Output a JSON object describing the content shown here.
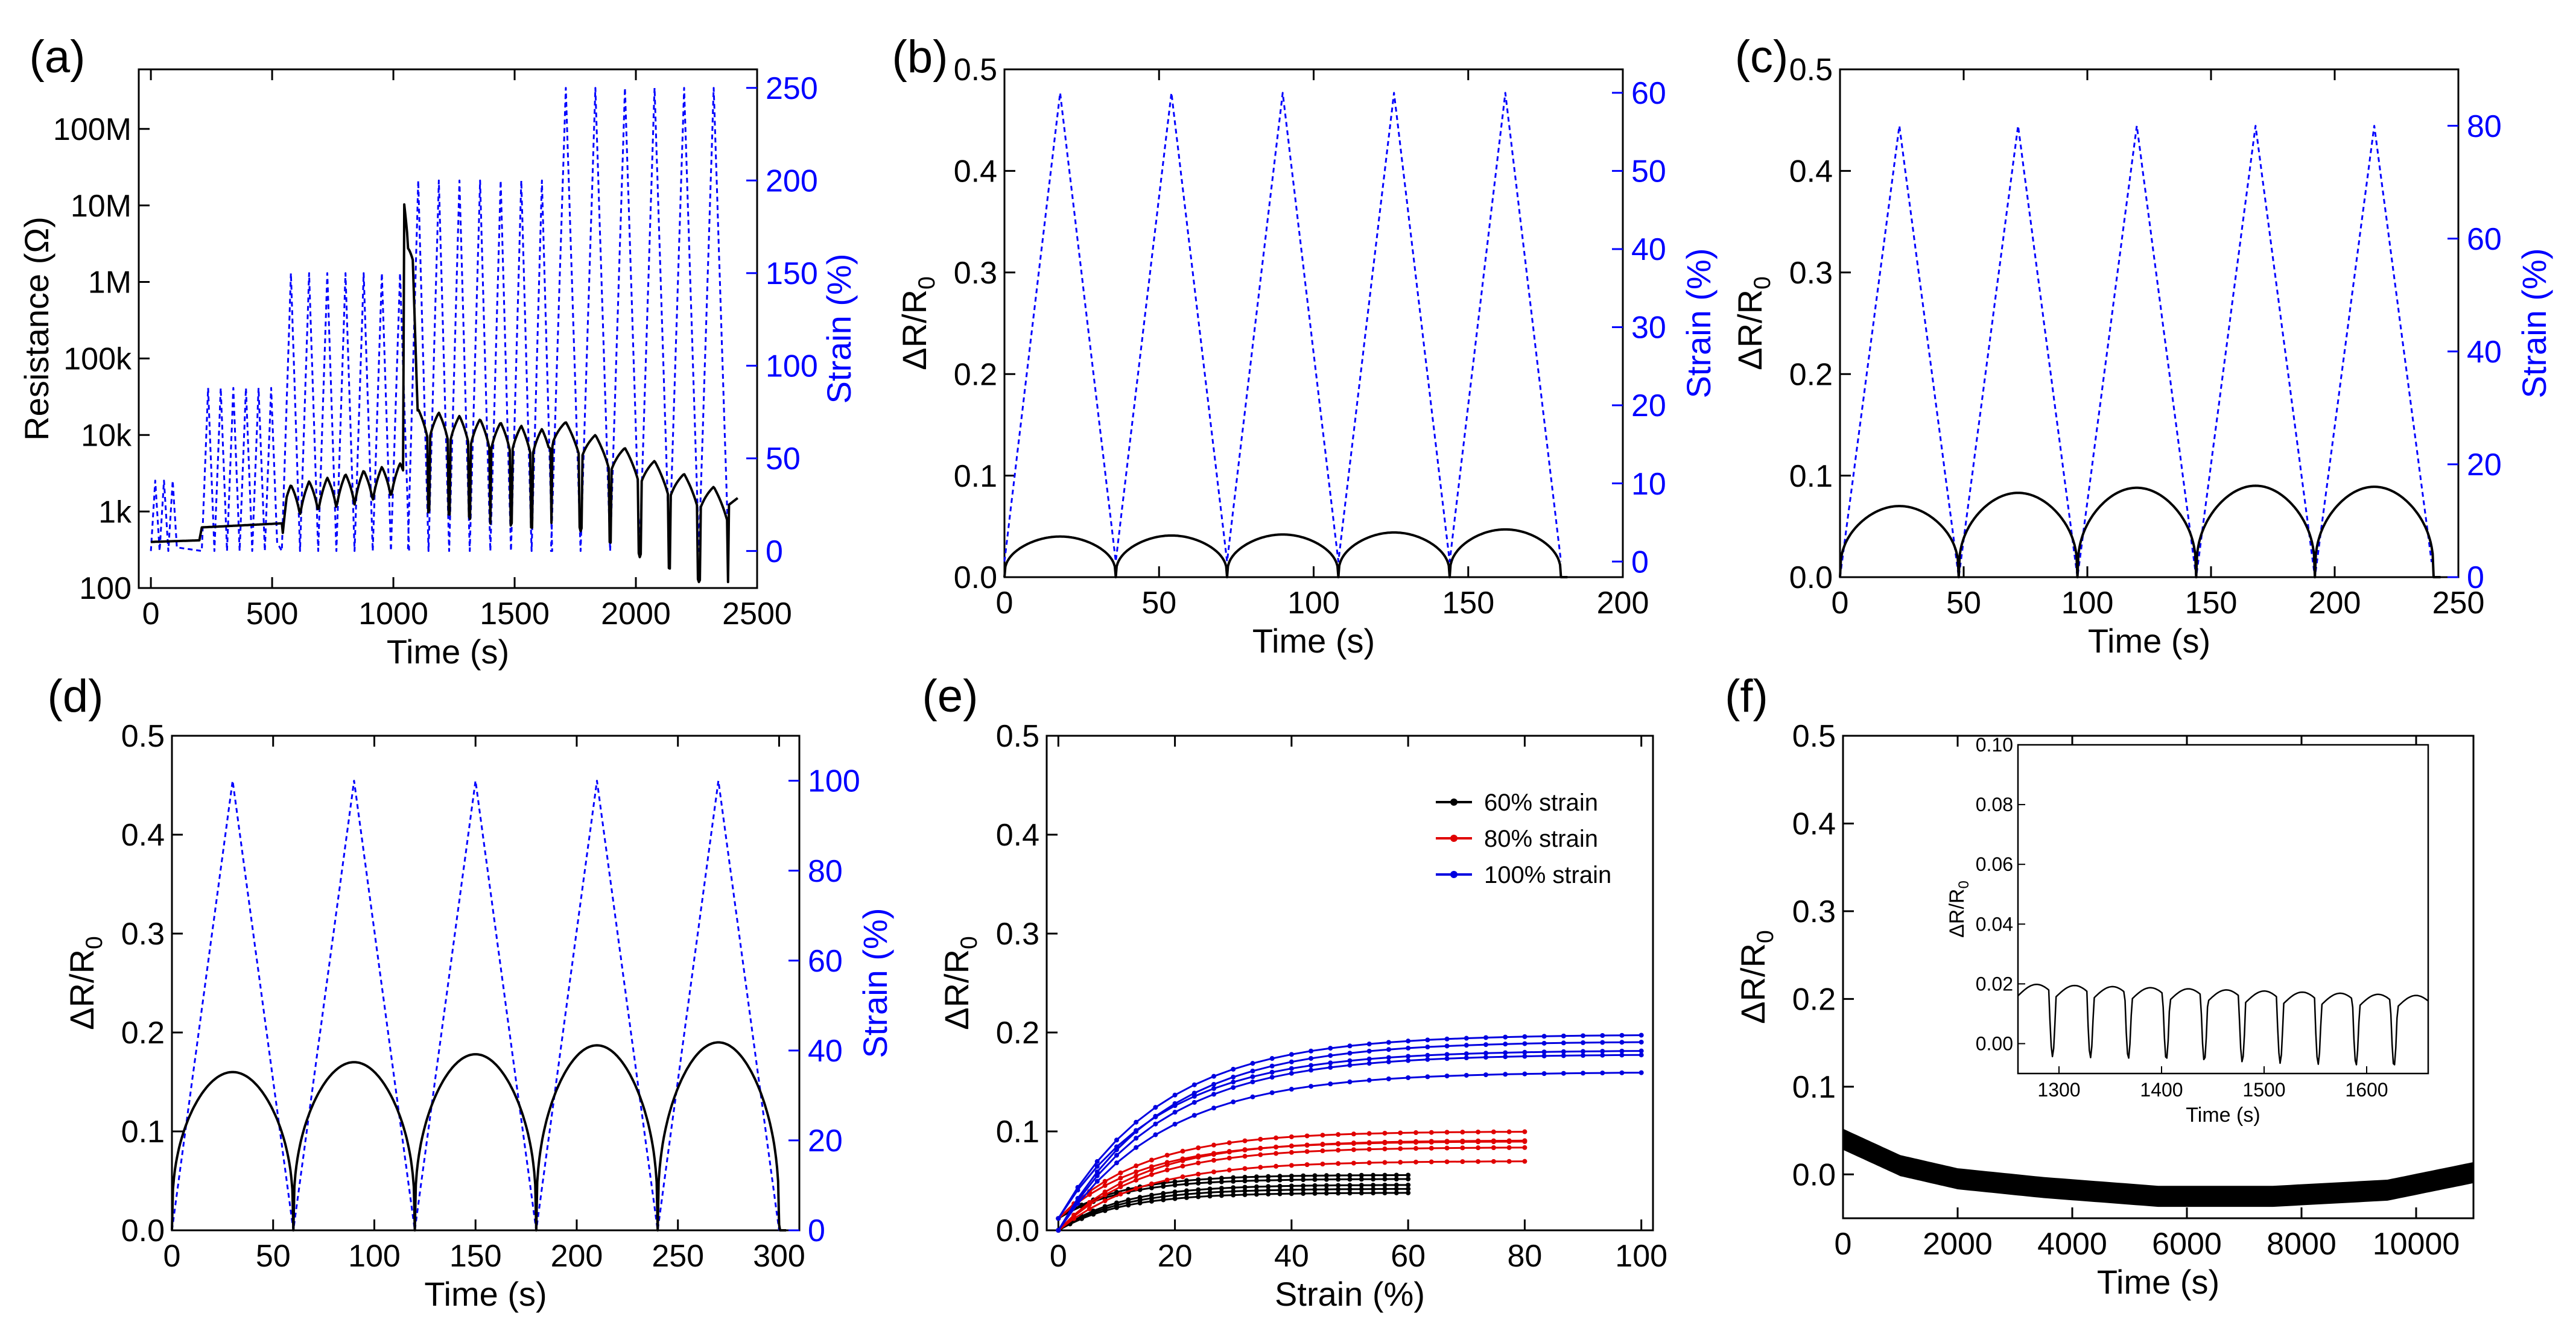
{
  "chart_data": [
    {
      "type": "line",
      "panel_label": "(a)",
      "xlabel": "Time (s)",
      "ylabel": "Resistance (Ω)",
      "y2label": "Strain (%)",
      "xlim": [
        -50,
        2500
      ],
      "ylim_log": [
        100,
        600000000
      ],
      "y2lim": [
        -20,
        260
      ],
      "x_ticks": [
        0,
        500,
        1000,
        1500,
        2000,
        2500
      ],
      "y_ticks": [
        {
          "v": 100,
          "label": "100"
        },
        {
          "v": 1000,
          "label": "1k"
        },
        {
          "v": 10000,
          "label": "10k"
        },
        {
          "v": 100000,
          "label": "100k"
        },
        {
          "v": 1000000,
          "label": "1M"
        },
        {
          "v": 10000000,
          "label": "10M"
        },
        {
          "v": 100000000,
          "label": "100M"
        }
      ],
      "y2_ticks": [
        0,
        50,
        100,
        150,
        200,
        250
      ],
      "strain_cycles": [
        {
          "start": 0,
          "period": 36,
          "count": 3,
          "amp": 38
        },
        {
          "start": 210,
          "period": 52,
          "count": 6,
          "amp": 88
        },
        {
          "start": 540,
          "period": 75,
          "count": 7,
          "amp": 150
        },
        {
          "start": 1060,
          "period": 85,
          "count": 7,
          "amp": 200
        },
        {
          "start": 1650,
          "period": 122,
          "count": 6,
          "amp": 250
        }
      ],
      "resistance_profile": [
        [
          0,
          400
        ],
        [
          200,
          420
        ],
        [
          210,
          620
        ],
        [
          540,
          700
        ],
        [
          560,
          1500
        ],
        [
          1040,
          3000
        ],
        [
          1045,
          10000000
        ],
        [
          1080,
          2000000
        ],
        [
          1100,
          15000
        ],
        [
          1640,
          8000
        ],
        [
          1660,
          12000
        ],
        [
          2380,
          1200
        ],
        [
          2420,
          1500
        ]
      ]
    },
    {
      "type": "line",
      "panel_label": "(b)",
      "xlabel": "Time (s)",
      "ylabel": "ΔR/R0",
      "y2label": "Strain (%)",
      "xlim": [
        0,
        200
      ],
      "ylim": [
        0,
        0.5
      ],
      "y2lim": [
        -2,
        63
      ],
      "x_ticks": [
        0,
        50,
        100,
        150,
        200
      ],
      "y_ticks": [
        0.0,
        0.1,
        0.2,
        0.3,
        0.4,
        0.5
      ],
      "y2_ticks": [
        0,
        10,
        20,
        30,
        40,
        50,
        60
      ],
      "cycle_period": 36,
      "cycles": 5,
      "strain_peak": 60,
      "response_peaks": [
        0.04,
        0.041,
        0.042,
        0.044,
        0.047
      ]
    },
    {
      "type": "line",
      "panel_label": "(c)",
      "xlabel": "Time (s)",
      "ylabel": "ΔR/R0",
      "y2label": "Strain (%)",
      "xlim": [
        0,
        250
      ],
      "ylim": [
        0,
        0.5
      ],
      "y2lim": [
        0,
        90
      ],
      "x_ticks": [
        0,
        50,
        100,
        150,
        200,
        250
      ],
      "y_ticks": [
        0.0,
        0.1,
        0.2,
        0.3,
        0.4,
        0.5
      ],
      "y2_ticks": [
        0,
        20,
        40,
        60,
        80
      ],
      "cycle_period": 48,
      "cycles": 5,
      "strain_peak": 80,
      "response_peaks": [
        0.07,
        0.083,
        0.088,
        0.09,
        0.089
      ]
    },
    {
      "type": "line",
      "panel_label": "(d)",
      "xlabel": "Time (s)",
      "ylabel": "ΔR/R0",
      "y2label": "Strain (%)",
      "xlim": [
        0,
        310
      ],
      "ylim": [
        0,
        0.5
      ],
      "y2lim": [
        0,
        110
      ],
      "x_ticks": [
        0,
        50,
        100,
        150,
        200,
        250,
        300
      ],
      "y_ticks": [
        0.0,
        0.1,
        0.2,
        0.3,
        0.4,
        0.5
      ],
      "y2_ticks": [
        0,
        20,
        40,
        60,
        80,
        100
      ],
      "cycle_period": 60,
      "cycles": 5,
      "strain_peak": 100,
      "response_peaks": [
        0.16,
        0.17,
        0.178,
        0.187,
        0.19
      ]
    },
    {
      "type": "line",
      "panel_label": "(e)",
      "xlabel": "Strain (%)",
      "ylabel": "ΔR/R0",
      "xlim": [
        -2,
        102
      ],
      "ylim": [
        0,
        0.5
      ],
      "x_ticks": [
        0,
        20,
        40,
        60,
        80,
        100
      ],
      "y_ticks": [
        0.0,
        0.1,
        0.2,
        0.3,
        0.4,
        0.5
      ],
      "legend_position": "top-right",
      "series": [
        {
          "name": "60% strain",
          "color": "#000000",
          "max_strain": 60,
          "final_values": [
            0.038,
            0.04,
            0.042,
            0.044,
            0.046
          ]
        },
        {
          "name": "80% strain",
          "color": "#e00000",
          "max_strain": 80,
          "final_values": [
            0.07,
            0.078,
            0.084,
            0.088,
            0.091
          ]
        },
        {
          "name": "100% strain",
          "color": "#0000e0",
          "max_strain": 100,
          "final_values": [
            0.16,
            0.17,
            0.178,
            0.186,
            0.191
          ]
        }
      ]
    },
    {
      "type": "line",
      "panel_label": "(f)",
      "xlabel": "Time (s)",
      "ylabel": "ΔR/R0",
      "xlim": [
        0,
        11000
      ],
      "ylim": [
        -0.05,
        0.5
      ],
      "x_ticks": [
        0,
        2000,
        4000,
        6000,
        8000,
        10000
      ],
      "y_ticks": [
        0.0,
        0.1,
        0.2,
        0.3,
        0.4,
        0.5
      ],
      "trend": [
        [
          0,
          0.04
        ],
        [
          1000,
          0.01
        ],
        [
          2000,
          -0.005
        ],
        [
          3500,
          -0.015
        ],
        [
          5500,
          -0.025
        ],
        [
          7500,
          -0.025
        ],
        [
          9500,
          -0.018
        ],
        [
          11000,
          0.002
        ]
      ],
      "inset": {
        "xlabel": "Time (s)",
        "ylabel": "ΔR/R0",
        "xlim": [
          1260,
          1660
        ],
        "ylim": [
          -0.01,
          0.1
        ],
        "x_ticks": [
          1300,
          1400,
          1500,
          1600
        ],
        "y_ticks": [
          0.0,
          0.02,
          0.04,
          0.06,
          0.08,
          0.1
        ],
        "cycle_period": 37,
        "baseline": 0.016
      }
    }
  ],
  "colors": {
    "response": "#000000",
    "strain": "#0000ff",
    "strain_axis": "#0000ff"
  }
}
